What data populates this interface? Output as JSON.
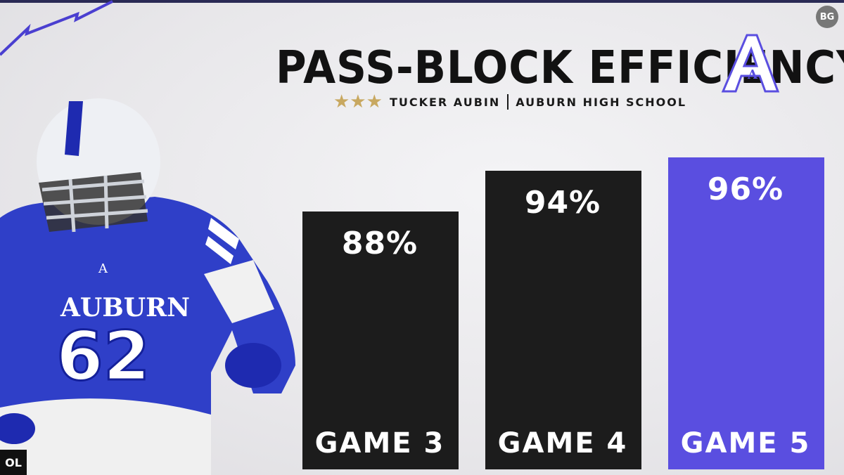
{
  "header": {
    "title": "PASS-BLOCK EFFICIENCY",
    "stars": "★★★",
    "player": "TUCKER AUBIN",
    "school": "AUBURN HIGH SCHOOL"
  },
  "badges": {
    "corner": "BG",
    "position": "OL"
  },
  "player_image": {
    "jersey_text": "AUBURN",
    "jersey_number": "62",
    "chest_letter": "A"
  },
  "logo": {
    "letter": "A"
  },
  "colors": {
    "accent": "#5a4ee0",
    "bar_dark": "#1c1c1c",
    "background": "#ecebee",
    "stars": "#c8a860"
  },
  "chart_data": {
    "type": "bar",
    "categories": [
      "GAME 3",
      "GAME 4",
      "GAME 5"
    ],
    "values": [
      88,
      94,
      96
    ],
    "value_labels": [
      "88%",
      "94%",
      "96%"
    ],
    "highlight_index": 2,
    "ylim": [
      50,
      100
    ],
    "grid": false
  }
}
